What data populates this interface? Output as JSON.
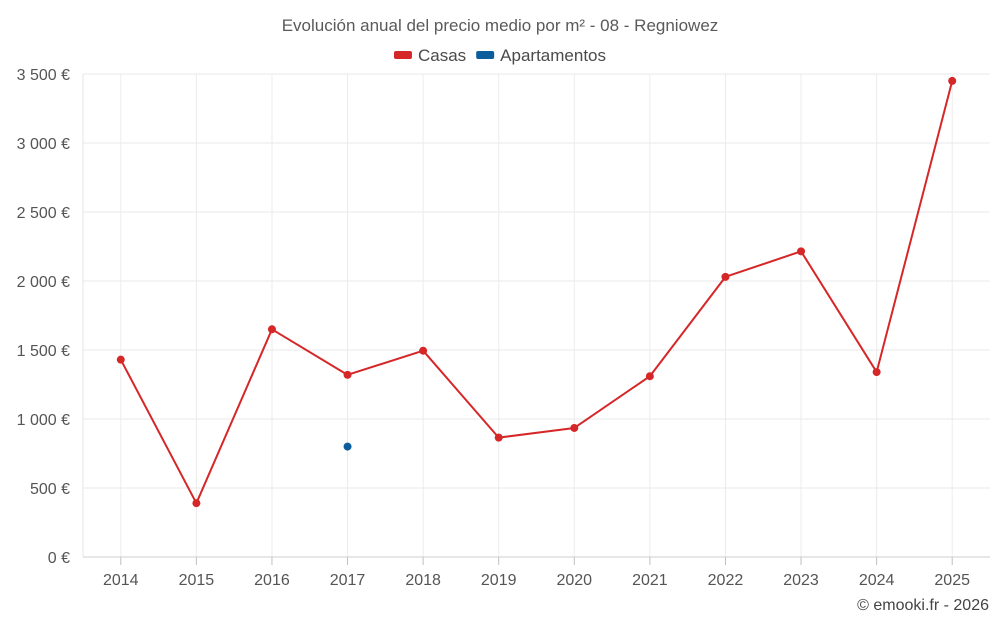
{
  "chart_data": {
    "type": "line",
    "title": "Evolución anual del precio medio por m² - 08 - Regniowez",
    "categories": [
      "2014",
      "2015",
      "2016",
      "2017",
      "2018",
      "2019",
      "2020",
      "2021",
      "2022",
      "2023",
      "2024",
      "2025"
    ],
    "series": [
      {
        "name": "Casas",
        "color": "#d62728",
        "values": [
          1430,
          390,
          1650,
          1320,
          1495,
          865,
          935,
          1310,
          2030,
          2215,
          1340,
          3450
        ]
      },
      {
        "name": "Apartamentos",
        "color": "#0b5e9b",
        "values": [
          null,
          null,
          null,
          800,
          null,
          null,
          null,
          null,
          null,
          null,
          null,
          null
        ]
      }
    ],
    "y_ticks": [
      0,
      500,
      1000,
      1500,
      2000,
      2500,
      3000,
      3500
    ],
    "y_tick_labels": [
      "0 €",
      "500 €",
      "1 000 €",
      "1 500 €",
      "2 000 €",
      "2 500 €",
      "3 000 €",
      "3 500 €"
    ],
    "ylim": [
      0,
      3500
    ],
    "xlabel": "",
    "ylabel": "",
    "grid": true,
    "legend_position": "top-center"
  },
  "credit": "© emooki.fr - 2026"
}
